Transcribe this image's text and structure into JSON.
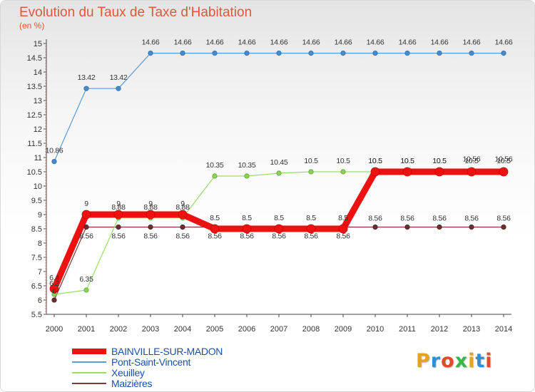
{
  "chart_data": {
    "type": "line",
    "title": "Evolution du Taux de Taxe d'Habitation",
    "subtitle": "(en %)",
    "xlabel": "",
    "ylabel": "",
    "x": [
      "2000",
      "2001",
      "2002",
      "2003",
      "2004",
      "2005",
      "2006",
      "2007",
      "2008",
      "2009",
      "2010",
      "2011",
      "2012",
      "2013",
      "2014"
    ],
    "ylim": [
      5.5,
      15
    ],
    "yticks": [
      "5.5",
      "6",
      "6.5",
      "7",
      "7.5",
      "8",
      "8.5",
      "9",
      "9.5",
      "10",
      "10.5",
      "11",
      "11.5",
      "12",
      "12.5",
      "13",
      "13.5",
      "14",
      "14.5",
      "15"
    ],
    "grid": false,
    "legend_position": "bottom-left",
    "series": [
      {
        "name": "BAINVILLE-SUR-MADON",
        "color": "#ee1111",
        "values": [
          6.4,
          9,
          9,
          9,
          9,
          8.5,
          8.5,
          8.5,
          8.5,
          8.5,
          10.5,
          10.5,
          10.5,
          10.5,
          10.5
        ],
        "labels": [
          "6.4",
          "9",
          "9",
          "9",
          "9",
          "8.5",
          "8.5",
          "8.5",
          "8.5",
          "8.5",
          "10.5",
          "10.5",
          "10.5",
          "10.5",
          "10.5"
        ]
      },
      {
        "name": "Pont-Saint-Vincent",
        "color": "#5b9bd5",
        "values": [
          10.86,
          13.42,
          13.42,
          14.66,
          14.66,
          14.66,
          14.66,
          14.66,
          14.66,
          14.66,
          14.66,
          14.66,
          14.66,
          14.66,
          14.66
        ],
        "labels": [
          "10.86",
          "13.42",
          "13.42",
          "14.66",
          "14.66",
          "14.66",
          "14.66",
          "14.66",
          "14.66",
          "14.66",
          "14.66",
          "14.66",
          "14.66",
          "14.66",
          "14.66"
        ]
      },
      {
        "name": "Xeuilley",
        "color": "#99dd66",
        "values": [
          6.2,
          6.35,
          8.88,
          8.88,
          8.88,
          10.35,
          10.35,
          10.45,
          10.5,
          10.5,
          10.5,
          10.5,
          10.5,
          10.56,
          10.56
        ],
        "labels": [
          "6.2",
          "6.35",
          "8.88",
          "8.88",
          "8.88",
          "10.35",
          "10.35",
          "10.45",
          "10.5",
          "10.5",
          "10.5",
          "10.5",
          "10.5",
          "10.56",
          "10.56"
        ]
      },
      {
        "name": "Maizières",
        "color": "#7a3b3b",
        "values": [
          6,
          8.56,
          8.56,
          8.56,
          8.56,
          8.56,
          8.56,
          8.56,
          8.56,
          8.56,
          8.56,
          8.56,
          8.56,
          8.56,
          8.56
        ],
        "labels": [
          "6",
          "8.56",
          "8.56",
          "8.56",
          "8.56",
          "8.56",
          "8.56",
          "8.56",
          "8.56",
          "8.56",
          "8.56",
          "8.56",
          "8.56",
          "8.56",
          "8.56"
        ]
      }
    ]
  },
  "logo": {
    "letters": [
      "P",
      "r",
      "o",
      "x",
      "i",
      "t",
      "i"
    ],
    "colors": [
      "#e6a21f",
      "#2d8fd6",
      "#e04b2a",
      "#3ab54a",
      "#e6a21f",
      "#2d8fd6",
      "#e04b2a"
    ]
  }
}
